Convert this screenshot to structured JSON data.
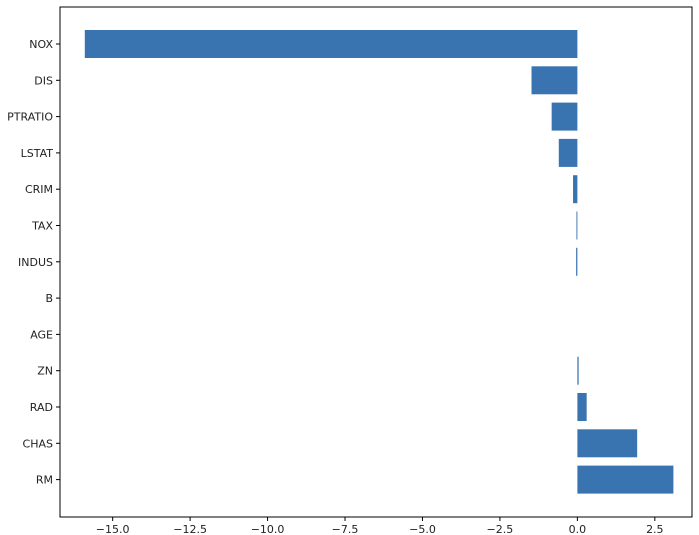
{
  "chart_data": {
    "type": "bar",
    "orientation": "horizontal",
    "categories": [
      "NOX",
      "DIS",
      "PTRATIO",
      "LSTAT",
      "CRIM",
      "TAX",
      "INDUS",
      "B",
      "AGE",
      "ZN",
      "RAD",
      "CHAS",
      "RM"
    ],
    "values": [
      -15.9,
      -1.48,
      -0.83,
      -0.6,
      -0.14,
      -0.03,
      -0.04,
      0.0,
      0.0,
      0.04,
      0.3,
      1.93,
      3.1
    ],
    "title": "",
    "xlabel": "",
    "ylabel": "",
    "xlim": [
      -16.7,
      3.7
    ],
    "xticks": [
      -15.0,
      -12.5,
      -10.0,
      -7.5,
      -5.0,
      -2.5,
      0.0,
      2.5
    ],
    "xtick_labels": [
      "−15.0",
      "−12.5",
      "−10.0",
      "−7.5",
      "−5.0",
      "−2.5",
      "0.0",
      "2.5"
    ],
    "bar_color": "#3a74b0",
    "grid": false,
    "legend": "none"
  }
}
